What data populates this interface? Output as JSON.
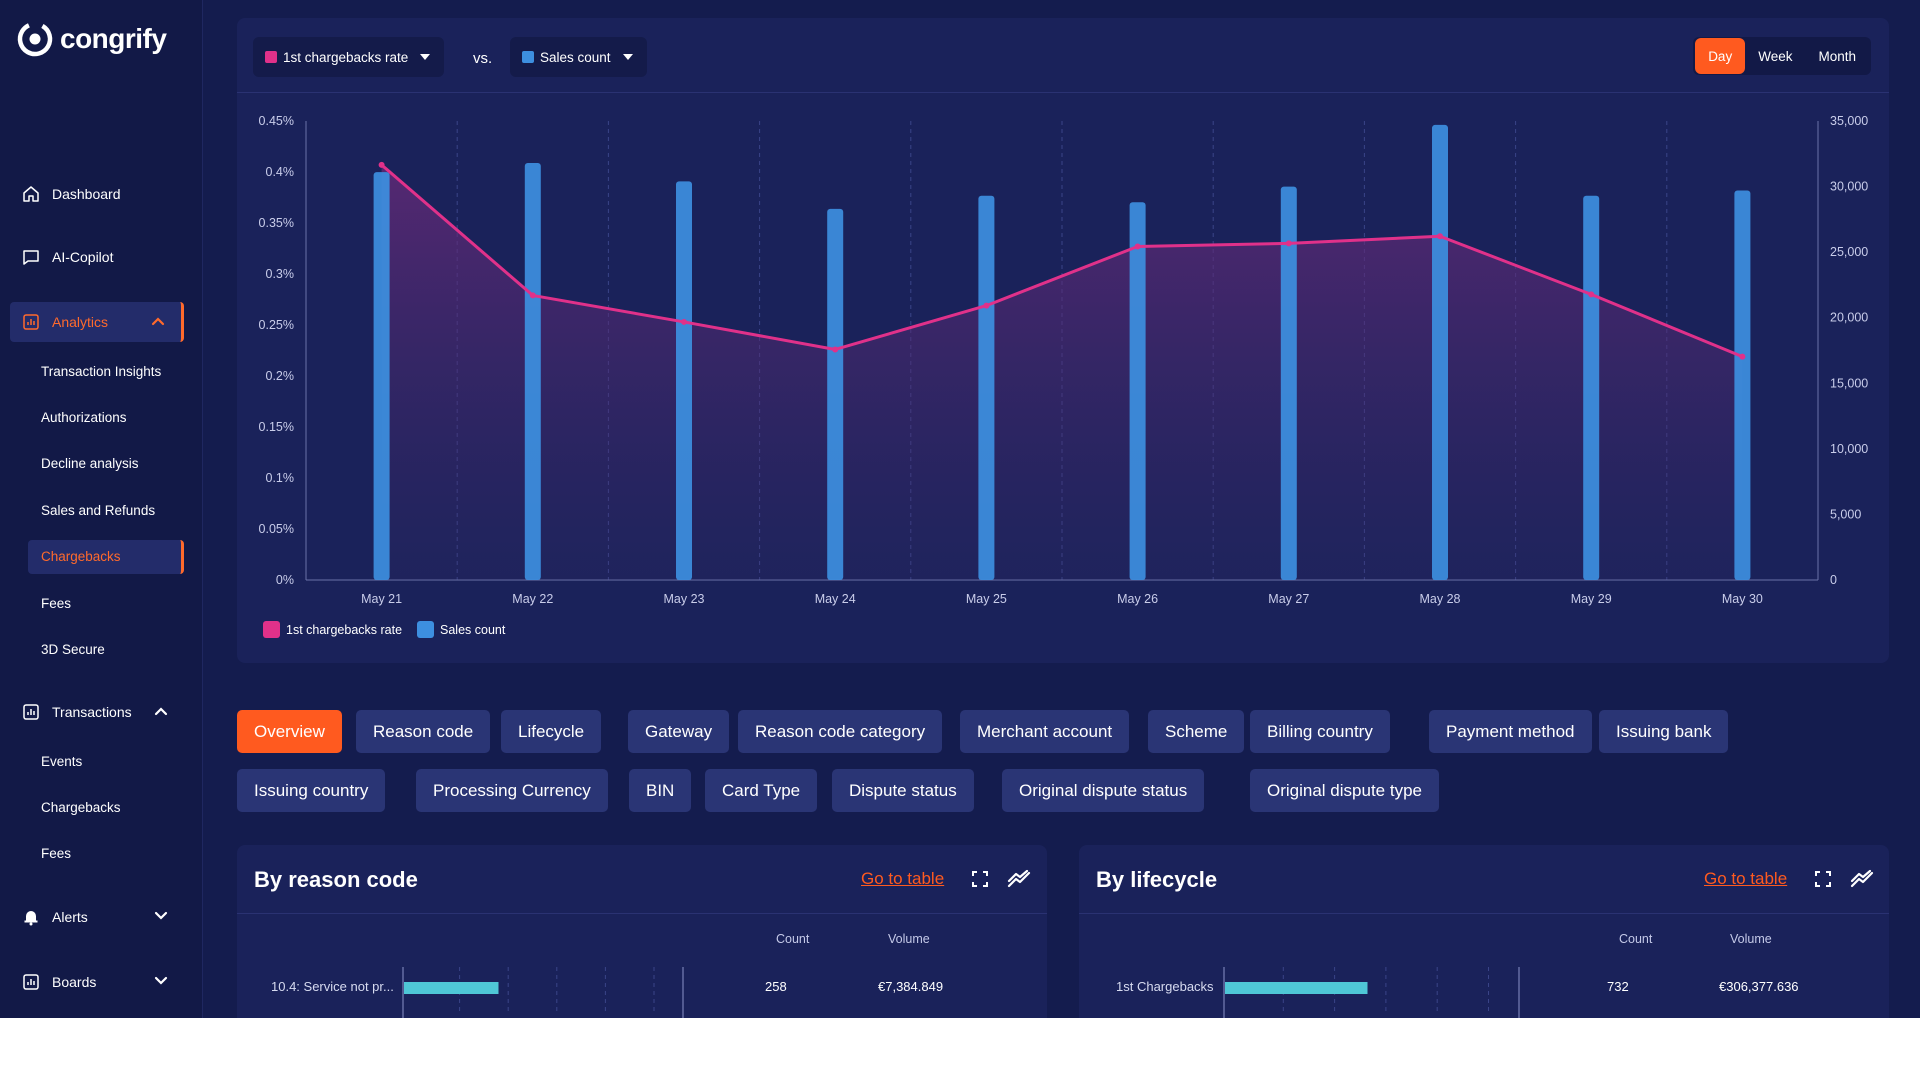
{
  "brand": {
    "name": "congrify"
  },
  "sidebar": {
    "dashboard": "Dashboard",
    "copilot": "AI-Copilot",
    "analytics": {
      "label": "Analytics",
      "items": [
        "Transaction Insights",
        "Authorizations",
        "Decline analysis",
        "Sales and Refunds",
        "Chargebacks",
        "Fees",
        "3D Secure"
      ],
      "active_item": "Chargebacks"
    },
    "transactions": {
      "label": "Transactions",
      "items": [
        "Events",
        "Chargebacks",
        "Fees"
      ]
    },
    "alerts": "Alerts",
    "boards": "Boards"
  },
  "toolbar": {
    "metric_left": "1st chargebacks rate",
    "vs": "vs.",
    "metric_right": "Sales count",
    "periods": [
      "Day",
      "Week",
      "Month"
    ],
    "active_period": "Day"
  },
  "colors": {
    "rate_line": "#e0318a",
    "sales_bar": "#3d8fe0",
    "accent": "#ff5a1f",
    "background": "#141c4e"
  },
  "chart_data": {
    "type": "bar+line",
    "categories": [
      "May 21",
      "May 22",
      "May 23",
      "May 24",
      "May 25",
      "May 26",
      "May 27",
      "May 28",
      "May 29",
      "May 30"
    ],
    "series": [
      {
        "name": "Sales count",
        "type": "bar",
        "axis": "right",
        "values": [
          31100,
          31800,
          30400,
          28300,
          29300,
          28800,
          30000,
          34700,
          29300,
          29700
        ]
      },
      {
        "name": "1st chargebacks rate",
        "type": "area-line",
        "axis": "left",
        "values": [
          0.407,
          0.279,
          0.253,
          0.226,
          0.269,
          0.327,
          0.33,
          0.337,
          0.28,
          0.219
        ]
      }
    ],
    "left_ticks": [
      "0%",
      "0.05%",
      "0.1%",
      "0.15%",
      "0.2%",
      "0.25%",
      "0.3%",
      "0.35%",
      "0.4%",
      "0.45%"
    ],
    "right_ticks": [
      "0",
      "5,000",
      "10,000",
      "15,000",
      "20,000",
      "25,000",
      "30,000",
      "35,000"
    ],
    "ylim_left": [
      0,
      0.45
    ],
    "ylim_right": [
      0,
      35000
    ],
    "legend": [
      "1st chargebacks rate",
      "Sales count"
    ],
    "legend_position": "bottom-left",
    "grid": "vertical dashed"
  },
  "tabs": {
    "items": [
      "Overview",
      "Reason code",
      "Lifecycle",
      "Gateway",
      "Reason code category",
      "Merchant account",
      "Scheme",
      "Billing country",
      "Payment method",
      "Issuing bank",
      "Issuing country",
      "Processing Currency",
      "BIN",
      "Card Type",
      "Dispute status",
      "Original dispute status",
      "Original dispute type"
    ],
    "active": "Overview"
  },
  "panels": [
    {
      "title": "By reason code",
      "link": "Go to table",
      "col_count": "Count",
      "col_volume": "Volume",
      "rows": [
        {
          "label": "10.4: Service not pr...",
          "count": "258",
          "volume": "€7,384.849",
          "share": 0.35
        }
      ]
    },
    {
      "title": "By lifecycle",
      "link": "Go to table",
      "col_count": "Count",
      "col_volume": "Volume",
      "rows": [
        {
          "label": "1st Chargebacks",
          "count": "732",
          "volume": "€306,377.636",
          "share": 0.5
        }
      ]
    }
  ]
}
